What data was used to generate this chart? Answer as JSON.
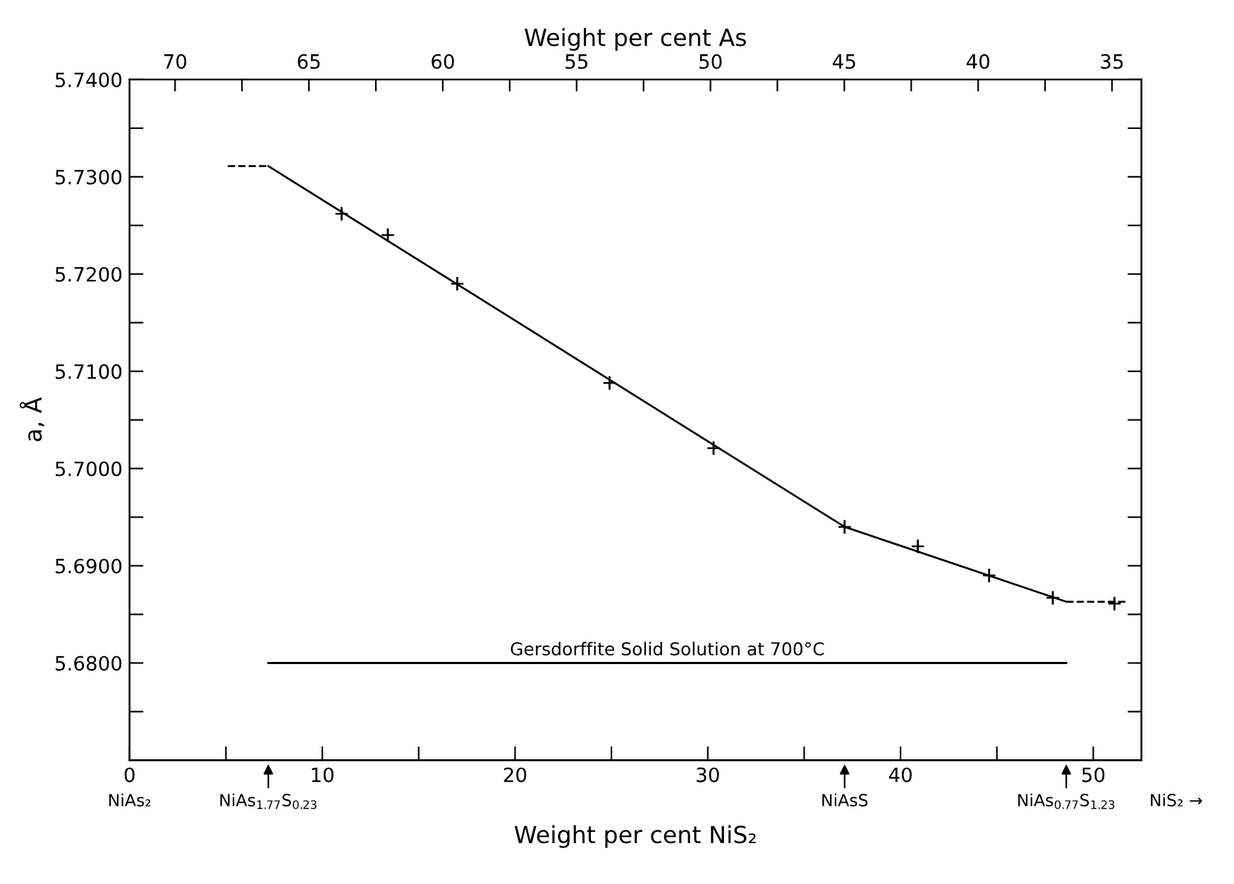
{
  "chart_data": {
    "type": "line",
    "xlabel": "Weight per cent NiS₂",
    "x2label": "Weight per cent As",
    "ylabel": "a, Å",
    "xlim": [
      0,
      52.5
    ],
    "xticks": [
      0,
      {
        "value": 5,
        "label": null
      },
      10,
      {
        "value": 15,
        "label": null
      },
      20,
      {
        "value": 25,
        "label": null
      },
      30,
      {
        "value": 35,
        "label": null
      },
      40,
      {
        "value": 45,
        "label": null
      },
      50
    ],
    "x2lim": [
      71.7,
      33.9
    ],
    "x2ticks": [
      70,
      {
        "value": 67.5,
        "label": null
      },
      65,
      {
        "value": 62.5,
        "label": null
      },
      60,
      {
        "value": 57.5,
        "label": null
      },
      55,
      {
        "value": 52.5,
        "label": null
      },
      50,
      {
        "value": 47.5,
        "label": null
      },
      45,
      {
        "value": 42.5,
        "label": null
      },
      40,
      {
        "value": 37.5,
        "label": null
      },
      35
    ],
    "ylim": [
      5.67,
      5.74
    ],
    "yticks": [
      {
        "value": 5.675,
        "label": null
      },
      {
        "value": 5.68,
        "label": "5.6800"
      },
      {
        "value": 5.685,
        "label": null
      },
      {
        "value": 5.69,
        "label": "5.6900"
      },
      {
        "value": 5.695,
        "label": null
      },
      {
        "value": 5.7,
        "label": "5.7000"
      },
      {
        "value": 5.705,
        "label": null
      },
      {
        "value": 5.71,
        "label": "5.7100"
      },
      {
        "value": 5.715,
        "label": null
      },
      {
        "value": 5.72,
        "label": "5.7200"
      },
      {
        "value": 5.725,
        "label": null
      },
      {
        "value": 5.73,
        "label": "5.7300"
      },
      {
        "value": 5.735,
        "label": null
      },
      {
        "value": 5.74,
        "label": "5.7400"
      }
    ],
    "grid": false,
    "legend": false,
    "series": [
      {
        "color": "#000000",
        "line_style": "solid",
        "marker": "none",
        "x": [
          7.2,
          37.1,
          48.6
        ],
        "values": [
          5.7311,
          5.694,
          5.6863
        ]
      },
      {
        "color": "#000000",
        "line_style": "dashed",
        "marker": "none",
        "x": [
          5.1,
          7.2
        ],
        "values": [
          5.7311,
          5.7311
        ]
      },
      {
        "color": "#000000",
        "line_style": "dashed",
        "marker": "none",
        "x": [
          48.6,
          51.7
        ],
        "values": [
          5.6863,
          5.6863
        ]
      },
      {
        "type": "scatter",
        "color": "#000000",
        "marker": "cross",
        "x": [
          11.0,
          13.4,
          17.0,
          24.9,
          30.3,
          37.1,
          40.9,
          44.6,
          47.9,
          51.1
        ],
        "values": [
          5.7262,
          5.724,
          5.719,
          5.7088,
          5.7021,
          5.694,
          5.692,
          5.689,
          5.6867,
          5.6861
        ],
        "errors": [
          0.0007,
          0.0007,
          0.0007,
          0.0007,
          0.0007,
          0.0007,
          0.0007,
          0.0007,
          0.0007,
          0.0007
        ]
      },
      {
        "color": "#000000",
        "line_style": "solid",
        "marker": "none",
        "x": [
          7.2,
          48.6
        ],
        "values": [
          5.68,
          5.68
        ]
      }
    ],
    "annotations": [
      {
        "text": "Gersdorffite Solid Solution at 700°C",
        "x": 27.9,
        "y": 5.68
      },
      "NiAs₂",
      "NiAs$_{1.77}$S$_{0.23}$",
      "NiAsS",
      "NiAs$_{0.77}$S$_{1.23}$",
      "NiS₂ →"
    ]
  }
}
